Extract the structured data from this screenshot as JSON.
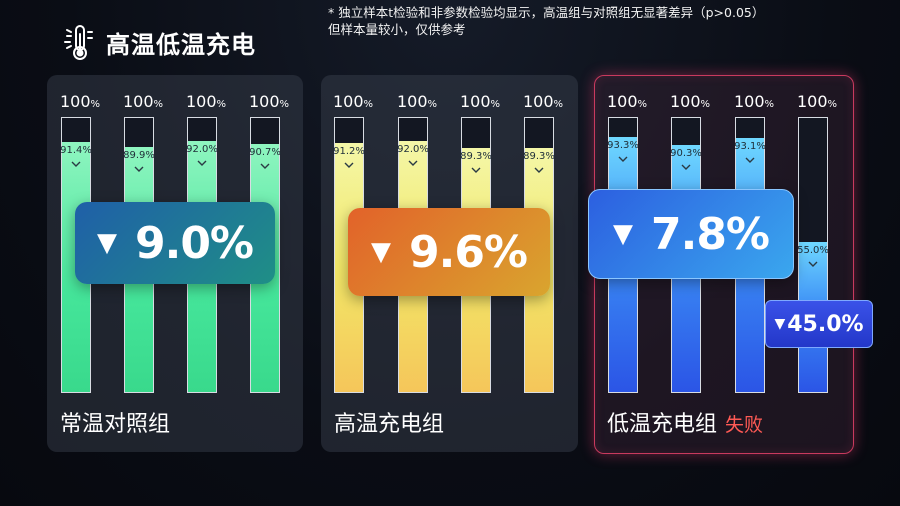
{
  "header": {
    "title": "高温低温充电",
    "icon": "thermometer-sun-icon",
    "note_line1": "* 独立样本t检验和非参数检验均显示，高温组与对照组无显著差异（p>0.05）",
    "note_line2": "但样本量较小，仅供参考"
  },
  "top_label": "100",
  "top_unit": "%",
  "groups": [
    {
      "label": "常温对照组",
      "change": "9.0%",
      "change_arrow": "▼",
      "values": [
        "91.4%",
        "89.9%",
        "92.0%",
        "90.7%"
      ],
      "levels": [
        0.914,
        0.899,
        0.92,
        0.907
      ],
      "color": "#45e59a"
    },
    {
      "label": "高温充电组",
      "change": "9.6%",
      "change_arrow": "▼",
      "values": [
        "91.2%",
        "92.0%",
        "89.3%",
        "89.3%"
      ],
      "levels": [
        0.912,
        0.92,
        0.893,
        0.893
      ],
      "color": "#f2e768"
    },
    {
      "label": "低温充电组",
      "status": "失败",
      "change": "7.8%",
      "change_arrow": "▼",
      "values": [
        "93.3%",
        "90.3%",
        "93.1%",
        "55.0%"
      ],
      "levels": [
        0.933,
        0.903,
        0.931,
        0.55
      ],
      "color": "#3b8cf5",
      "extra_change": "45.0%",
      "extra_arrow": "▼"
    }
  ]
}
